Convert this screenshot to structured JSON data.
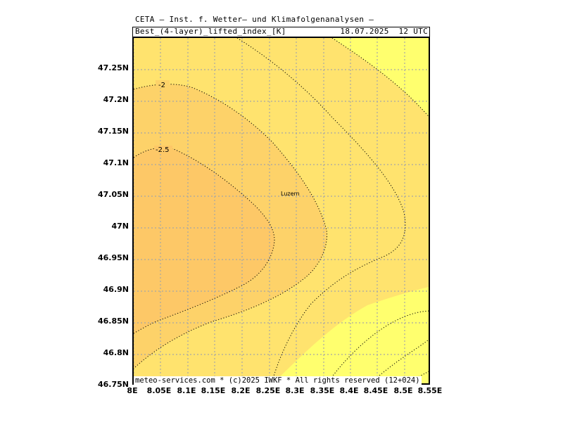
{
  "header": {
    "institute": "CETA – Inst. f. Wetter– und Klimafolgenanalysen –",
    "variable": "Best_(4-layer)_lifted_index_[K]",
    "datetime": "18.07.2025  12 UTC"
  },
  "map": {
    "city_label": "Luzern",
    "contour_labels": [
      "-2",
      "-2.5"
    ],
    "colors": {
      "band_lt_neg2p5": "#fdc867",
      "band_neg2p5_neg2": "#fdd269",
      "band_neg2_neg1p5": "#ffe36e",
      "band_gt_neg1p5": "#ffff6e",
      "grid": "#a6a6a6"
    },
    "lat_labels": [
      "47.25N",
      "47.2N",
      "47.15N",
      "47.1N",
      "47.05N",
      "47N",
      "46.95N",
      "46.9N",
      "46.85N",
      "46.8N",
      "46.75N"
    ],
    "lon_labels": [
      "8E",
      "8.05E",
      "8.1E",
      "8.15E",
      "8.2E",
      "8.25E",
      "8.3E",
      "8.35E",
      "8.4E",
      "8.45E",
      "8.5E",
      "8.55E"
    ]
  },
  "footer": "meteo-services.com * (c)2025 IWKF * All rights reserved (12+024)"
}
